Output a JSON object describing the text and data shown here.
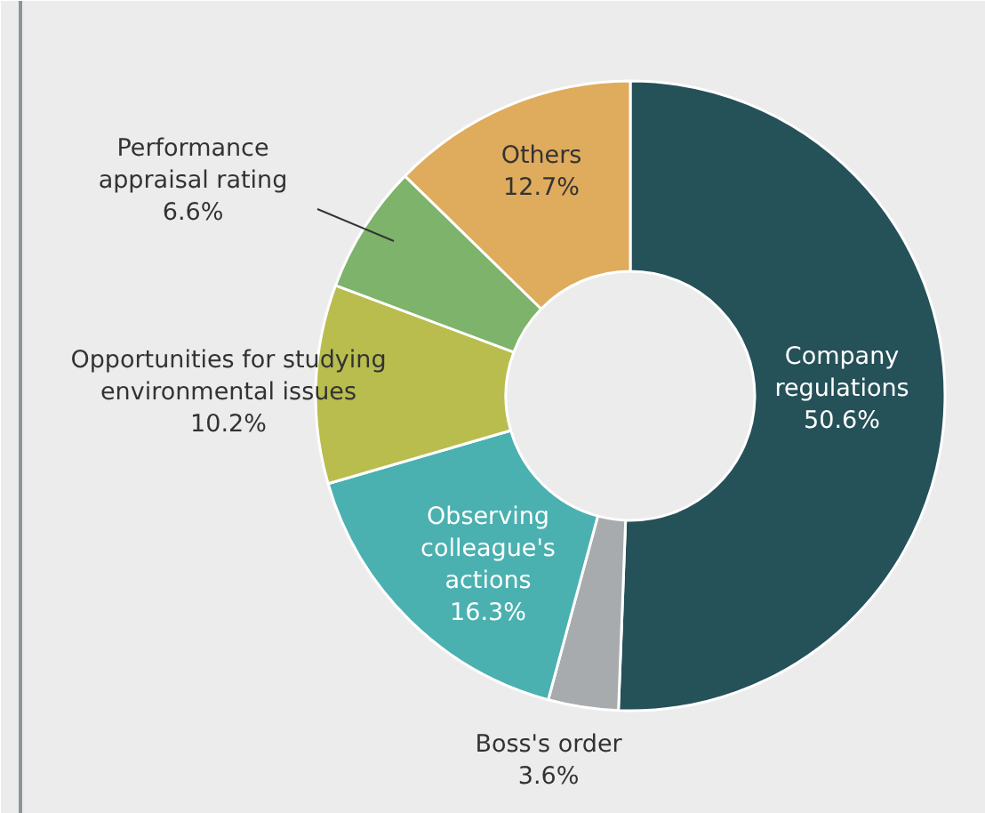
{
  "chart_data": {
    "type": "donut",
    "categories": [
      "Company regulations",
      "Boss's order",
      "Observing colleague's actions",
      "Opportunities for studying environmental issues",
      "Performance appraisal rating",
      "Others"
    ],
    "values": [
      50.6,
      3.6,
      16.3,
      10.2,
      6.6,
      12.7
    ],
    "colors": [
      "#255159",
      "#a7abad",
      "#4ab0b0",
      "#b8bd4e",
      "#7db36a",
      "#dfab5c"
    ],
    "value_labels": [
      "50.6%",
      "3.6%",
      "16.3%",
      "10.2%",
      "6.6%",
      "12.7%"
    ]
  }
}
